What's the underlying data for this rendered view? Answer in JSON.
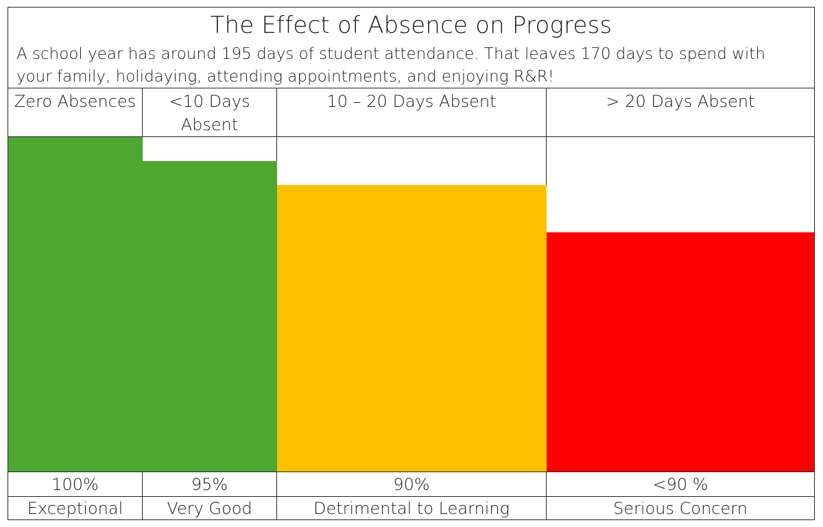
{
  "chart_data": {
    "type": "bar",
    "title": "The Effect of Absence on Progress",
    "subtitle": "A school year has around 195 days of student attendance. That leaves 170 days to spend with your family, holidaying, attending appointments, and enjoying R&R!",
    "categories": [
      "Zero Absences",
      "<10 Days Absent",
      "10 – 20 Days Absent",
      "> 20 Days Absent"
    ],
    "values": [
      100,
      95,
      90,
      80
    ],
    "value_labels": [
      "100%",
      "95%",
      "90%",
      "<90 %"
    ],
    "ratings": [
      "Exceptional",
      "Very Good",
      "Detrimental to Learning",
      "Serious Concern"
    ],
    "colors": [
      "#4ea72e",
      "#4ea72e",
      "#ffc000",
      "#ff0000"
    ],
    "ylim": [
      30,
      100
    ],
    "grid": false,
    "legend": "none"
  }
}
